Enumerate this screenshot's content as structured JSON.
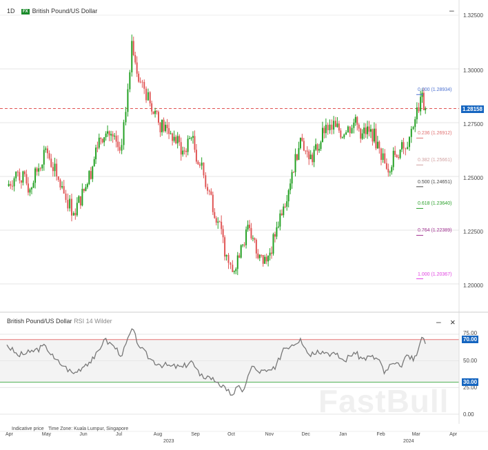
{
  "header": {
    "timeframe": "1D",
    "fx_badge": "FX",
    "symbol": "British Pound/US Dollar",
    "minimize": "–"
  },
  "price_axis": {
    "ticks": [
      "1.32500",
      "1.30000",
      "1.27500",
      "1.25000",
      "1.22500",
      "1.20000"
    ],
    "current_price": "1.28158",
    "current_color": "#1565c0"
  },
  "fibonacci": [
    {
      "label": "0.000 (1.28934)",
      "price": 1.28934,
      "color": "#4a6fd0"
    },
    {
      "label": "0.236 (1.26912)",
      "price": 1.26912,
      "color": "#e07070"
    },
    {
      "label": "0.382 (1.25661)",
      "price": 1.25661,
      "color": "#d0a0a0"
    },
    {
      "label": "0.500 (1.24651)",
      "price": 1.24651,
      "color": "#444444"
    },
    {
      "label": "0.618 (1.23640)",
      "price": 1.2364,
      "color": "#2aa02a"
    },
    {
      "label": "0.764 (1.22389)",
      "price": 1.22389,
      "color": "#a03090"
    },
    {
      "label": "1.000 (1.20367)",
      "price": 1.20367,
      "color": "#e040e0"
    }
  ],
  "rsi_panel": {
    "symbol": "British Pound/US Dollar",
    "indicator": "RSI 14 Wilder",
    "minimize": "–",
    "close": "×",
    "ticks": [
      "75.00",
      "50.00",
      "25.00",
      "0.00"
    ],
    "upper": "70.00",
    "lower": "30.00",
    "upper_color": "#e57373",
    "lower_color": "#4caf50"
  },
  "footer": {
    "indicative": "Indicative price",
    "timezone": "Time Zone: Kuala Lumpur, Singapore",
    "months": [
      "Apr",
      "May",
      "Jun",
      "Jul",
      "Aug",
      "Sep",
      "Oct",
      "Nov",
      "Dec",
      "Jan",
      "Feb",
      "Mar",
      "Apr"
    ],
    "years": [
      "2023",
      "2024"
    ]
  },
  "watermark": "FastBull",
  "chart_data": [
    {
      "type": "candlestick",
      "title": "British Pound/US Dollar",
      "timeframe": "1D",
      "ylim": [
        1.18,
        1.33
      ],
      "closes": [
        [
          "2023-04-01",
          1.2455
        ],
        [
          "2023-04-10",
          1.252
        ],
        [
          "2023-04-20",
          1.244
        ],
        [
          "2023-05-03",
          1.263
        ],
        [
          "2023-05-12",
          1.25
        ],
        [
          "2023-05-18",
          1.242
        ],
        [
          "2023-05-26",
          1.233
        ],
        [
          "2023-06-05",
          1.245
        ],
        [
          "2023-06-12",
          1.258
        ],
        [
          "2023-06-16",
          1.268
        ],
        [
          "2023-06-23",
          1.271
        ],
        [
          "2023-07-03",
          1.262
        ],
        [
          "2023-07-08",
          1.28
        ],
        [
          "2023-07-13",
          1.313
        ],
        [
          "2023-07-20",
          1.294
        ],
        [
          "2023-07-28",
          1.284
        ],
        [
          "2023-08-04",
          1.275
        ],
        [
          "2023-08-14",
          1.27
        ],
        [
          "2023-08-24",
          1.262
        ],
        [
          "2023-08-31",
          1.268
        ],
        [
          "2023-09-07",
          1.255
        ],
        [
          "2023-09-15",
          1.243
        ],
        [
          "2023-09-22",
          1.229
        ],
        [
          "2023-09-29",
          1.2135
        ],
        [
          "2023-10-04",
          1.2055
        ],
        [
          "2023-10-11",
          1.218
        ],
        [
          "2023-10-18",
          1.226
        ],
        [
          "2023-10-25",
          1.212
        ],
        [
          "2023-11-01",
          1.2105
        ],
        [
          "2023-11-08",
          1.222
        ],
        [
          "2023-11-15",
          1.236
        ],
        [
          "2023-11-22",
          1.252
        ],
        [
          "2023-11-29",
          1.268
        ],
        [
          "2023-12-06",
          1.258
        ],
        [
          "2023-12-13",
          1.262
        ],
        [
          "2023-12-20",
          1.274
        ],
        [
          "2023-12-28",
          1.273
        ],
        [
          "2024-01-04",
          1.2695
        ],
        [
          "2024-01-12",
          1.275
        ],
        [
          "2024-01-19",
          1.27
        ],
        [
          "2024-01-26",
          1.272
        ],
        [
          "2024-02-02",
          1.263
        ],
        [
          "2024-02-08",
          1.2535
        ],
        [
          "2024-02-15",
          1.26
        ],
        [
          "2024-02-22",
          1.263
        ],
        [
          "2024-03-01",
          1.273
        ],
        [
          "2024-03-07",
          1.287
        ],
        [
          "2024-03-11",
          1.2815
        ]
      ]
    },
    {
      "type": "line",
      "title": "RSI 14 Wilder",
      "ylim": [
        0,
        80
      ],
      "levels": [
        30,
        70
      ],
      "values": [
        [
          "2023-04-01",
          65
        ],
        [
          "2023-04-10",
          55
        ],
        [
          "2023-04-20",
          58
        ],
        [
          "2023-05-03",
          64
        ],
        [
          "2023-05-10",
          52
        ],
        [
          "2023-05-18",
          45
        ],
        [
          "2023-05-26",
          38
        ],
        [
          "2023-06-05",
          47
        ],
        [
          "2023-06-12",
          52
        ],
        [
          "2023-06-20",
          70
        ],
        [
          "2023-06-28",
          64
        ],
        [
          "2023-07-05",
          55
        ],
        [
          "2023-07-13",
          80
        ],
        [
          "2023-07-20",
          62
        ],
        [
          "2023-07-28",
          52
        ],
        [
          "2023-08-04",
          47
        ],
        [
          "2023-08-14",
          45
        ],
        [
          "2023-08-24",
          44
        ],
        [
          "2023-08-31",
          50
        ],
        [
          "2023-09-07",
          36
        ],
        [
          "2023-09-15",
          35
        ],
        [
          "2023-09-22",
          30
        ],
        [
          "2023-09-29",
          22
        ],
        [
          "2023-10-04",
          18
        ],
        [
          "2023-10-08",
          26
        ],
        [
          "2023-10-12",
          21
        ],
        [
          "2023-10-20",
          45
        ],
        [
          "2023-10-25",
          40
        ],
        [
          "2023-11-01",
          40
        ],
        [
          "2023-11-08",
          42
        ],
        [
          "2023-11-15",
          62
        ],
        [
          "2023-11-22",
          65
        ],
        [
          "2023-11-29",
          71
        ],
        [
          "2023-12-06",
          56
        ],
        [
          "2023-12-13",
          60
        ],
        [
          "2023-12-20",
          58
        ],
        [
          "2023-12-28",
          56
        ],
        [
          "2024-01-04",
          50
        ],
        [
          "2024-01-12",
          58
        ],
        [
          "2024-01-19",
          52
        ],
        [
          "2024-01-26",
          54
        ],
        [
          "2024-02-02",
          51
        ],
        [
          "2024-02-06",
          38
        ],
        [
          "2024-02-12",
          47
        ],
        [
          "2024-02-19",
          45
        ],
        [
          "2024-02-26",
          55
        ],
        [
          "2024-03-01",
          50
        ],
        [
          "2024-03-05",
          60
        ],
        [
          "2024-03-08",
          72
        ],
        [
          "2024-03-11",
          66
        ]
      ]
    }
  ]
}
